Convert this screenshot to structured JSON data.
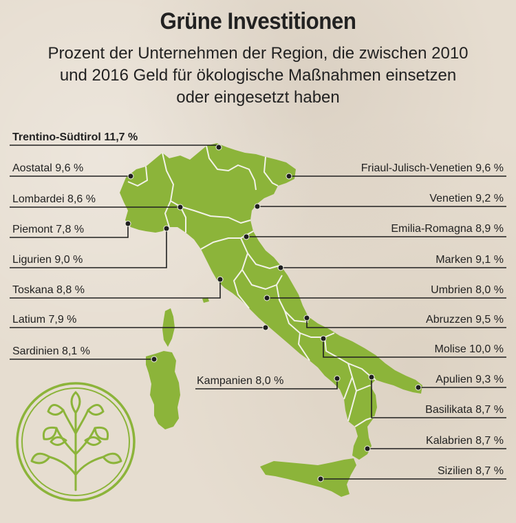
{
  "title": "Grüne Investitionen",
  "subtitle_line1": "Prozent der Unternehmen der Region, die zwischen 2010",
  "subtitle_line2": "und 2016 Geld für ökologische Maßnahmen einsetzen",
  "subtitle_line3": "oder eingesetzt haben",
  "colors": {
    "land": "#8cb43a",
    "border": "#f2f2e8",
    "line": "#1f1f1f",
    "logo": "#8cb43a"
  },
  "icons": {
    "logo": "tree-icon"
  },
  "regions": [
    {
      "label": "Trentino-Südtirol 11,7 %",
      "highlight": true
    },
    {
      "label": "Aostatal 9,6 %"
    },
    {
      "label": "Lombardei 8,6 %"
    },
    {
      "label": "Piemont 7,8 %"
    },
    {
      "label": "Ligurien 9,0 %"
    },
    {
      "label": "Toskana 8,8 %"
    },
    {
      "label": "Latium 7,9 %"
    },
    {
      "label": "Sardinien 8,1 %"
    },
    {
      "label": "Kampanien 8,0 %"
    },
    {
      "label": "Friaul-Julisch-Venetien 9,6 %"
    },
    {
      "label": "Venetien 9,2 %"
    },
    {
      "label": "Emilia-Romagna 8,9 %"
    },
    {
      "label": "Marken 9,1 %"
    },
    {
      "label": "Umbrien 8,0 %"
    },
    {
      "label": "Abruzzen 9,5 %"
    },
    {
      "label": "Molise 10,0 %"
    },
    {
      "label": "Apulien 9,3 %"
    },
    {
      "label": "Basilikata 8,7 %"
    },
    {
      "label": "Kalabrien 8,7 %"
    },
    {
      "label": "Sizilien 8,7 %"
    }
  ]
}
